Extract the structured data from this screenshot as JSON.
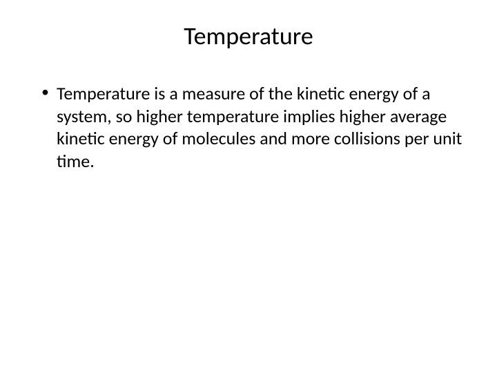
{
  "slide": {
    "title": "Temperature",
    "bullet_items": [
      "Temperature is a measure of the kinetic energy of a system, so higher temperature implies higher average kinetic energy of molecules and more collisions per unit time."
    ],
    "colors": {
      "background": "#ffffff",
      "text": "#000000"
    },
    "typography": {
      "title_fontsize": 36,
      "body_fontsize": 26,
      "font_family": "Calibri"
    }
  }
}
